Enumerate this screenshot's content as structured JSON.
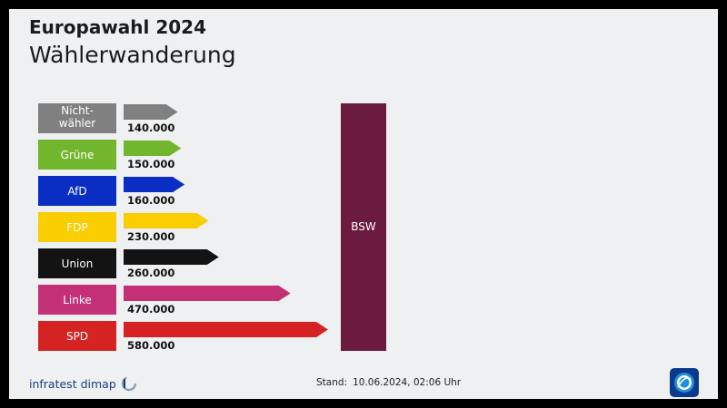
{
  "header": {
    "title": "Europawahl 2024",
    "subtitle": "Wählerwanderung"
  },
  "chart_data": {
    "type": "bar",
    "orientation": "horizontal",
    "target": "BSW",
    "target_color": "#6b1a40",
    "categories": [
      {
        "name": "Nicht-\nwähler",
        "value": 140000,
        "label": "140.000",
        "color": "#808080"
      },
      {
        "name": "Grüne",
        "value": 150000,
        "label": "150.000",
        "color": "#71b62c"
      },
      {
        "name": "AfD",
        "value": 160000,
        "label": "160.000",
        "color": "#0a2ec3"
      },
      {
        "name": "FDP",
        "value": 230000,
        "label": "230.000",
        "color": "#f9cd00"
      },
      {
        "name": "Union",
        "value": 260000,
        "label": "260.000",
        "color": "#131313"
      },
      {
        "name": "Linke",
        "value": 470000,
        "label": "470.000",
        "color": "#c43076"
      },
      {
        "name": "SPD",
        "value": 580000,
        "label": "580.000",
        "color": "#d52323"
      }
    ]
  },
  "footer": {
    "source_logo": "infratest dimap",
    "stand_label": "Stand:",
    "stand_value": "10.06.2024, 02:06 Uhr",
    "broadcaster_icon": "tagesschau-icon"
  }
}
